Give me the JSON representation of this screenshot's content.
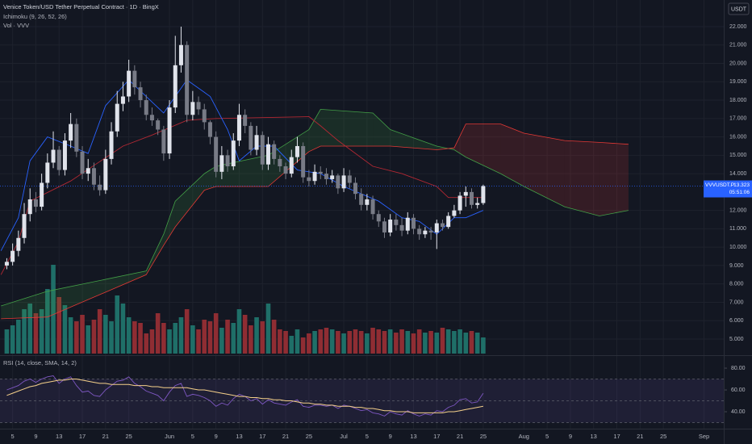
{
  "chart_data": {
    "type": "candlestick",
    "title": "Venice Token/USD Tether Perpetual Contract · 1D · BingX",
    "indicator_labels": [
      "Ichimoku (9, 26, 52, 26)",
      "Vol · VVV"
    ],
    "currency": "USDT",
    "up_color": "#e0e3eb",
    "down_color": "#787b86",
    "x": [
      4,
      5,
      6,
      7,
      8,
      9,
      10,
      11,
      12,
      13,
      14,
      15,
      16,
      17,
      18,
      19,
      20,
      21,
      22,
      23,
      24,
      25,
      26,
      27,
      28,
      29,
      30,
      31,
      32,
      33,
      34,
      35,
      36,
      37,
      38,
      39,
      40,
      41,
      42,
      43,
      44,
      45,
      46,
      47,
      48,
      49,
      50,
      51,
      52,
      53,
      54,
      55,
      56,
      57,
      58,
      59,
      60,
      61,
      62,
      63,
      64,
      65,
      66,
      67,
      68,
      69,
      70,
      71,
      72,
      73,
      74,
      75,
      76,
      77,
      78,
      79,
      80,
      81,
      82,
      83,
      84,
      85,
      86
    ],
    "open": [
      9.0,
      9.2,
      9.8,
      10.5,
      11.8,
      12.6,
      12.2,
      13.5,
      14.6,
      15.3,
      14.2,
      15.8,
      16.7,
      15.2,
      14.0,
      14.3,
      13.4,
      13.1,
      14.8,
      16.3,
      17.8,
      18.2,
      19.6,
      18.7,
      18.0,
      17.2,
      16.9,
      16.4,
      15.1,
      17.6,
      19.9,
      21.0,
      17.2,
      17.9,
      17.5,
      16.8,
      16.0,
      14.1,
      15.0,
      14.4,
      15.8,
      17.2,
      16.6,
      15.3,
      16.1,
      14.5,
      15.6,
      14.8,
      14.4,
      14.0,
      14.9,
      15.5,
      13.8,
      13.6,
      14.1,
      14.0,
      13.7,
      13.9,
      13.2,
      13.9,
      13.5,
      12.9,
      12.3,
      12.6,
      11.8,
      11.4,
      10.8,
      11.5,
      11.2,
      10.9,
      11.6,
      11.0,
      10.7,
      10.9,
      10.8,
      11.3,
      11.1,
      11.7,
      12.0,
      12.8,
      13.0,
      12.3,
      12.4
    ],
    "high": [
      9.4,
      10.2,
      10.9,
      12.4,
      13.2,
      13.0,
      14.0,
      15.1,
      16.3,
      15.5,
      16.2,
      17.3,
      17.0,
      15.5,
      14.8,
      14.6,
      13.9,
      15.3,
      16.8,
      18.5,
      19.0,
      20.2,
      19.9,
      19.0,
      18.3,
      17.6,
      17.0,
      16.6,
      18.0,
      21.5,
      22.0,
      21.2,
      18.5,
      18.2,
      17.8,
      16.9,
      16.3,
      15.5,
      15.3,
      16.2,
      17.8,
      17.5,
      16.8,
      16.6,
      16.3,
      16.0,
      15.8,
      15.0,
      14.6,
      15.3,
      16.0,
      15.7,
      14.2,
      14.5,
      14.4,
      14.3,
      14.2,
      14.0,
      14.3,
      14.2,
      13.8,
      13.2,
      12.9,
      12.8,
      12.0,
      11.6,
      11.8,
      11.8,
      11.6,
      11.9,
      11.8,
      11.2,
      11.1,
      11.1,
      11.5,
      11.5,
      11.9,
      12.3,
      13.0,
      13.3,
      13.2,
      12.7,
      13.4
    ],
    "low": [
      8.8,
      9.0,
      9.5,
      10.2,
      11.4,
      11.9,
      12.0,
      13.2,
      14.3,
      13.9,
      13.9,
      15.4,
      14.9,
      13.7,
      13.6,
      13.1,
      12.8,
      12.9,
      14.5,
      16.0,
      17.4,
      17.9,
      18.3,
      17.6,
      16.9,
      16.6,
      16.1,
      14.7,
      14.8,
      17.3,
      19.5,
      16.8,
      16.9,
      17.2,
      16.4,
      15.6,
      13.8,
      13.7,
      14.1,
      14.2,
      15.5,
      16.2,
      15.0,
      15.0,
      14.2,
      14.2,
      14.5,
      14.1,
      13.7,
      13.8,
      14.6,
      13.5,
      13.3,
      13.4,
      13.7,
      13.4,
      13.5,
      12.9,
      13.0,
      13.2,
      12.6,
      12.0,
      12.0,
      11.5,
      11.1,
      10.5,
      10.6,
      10.9,
      10.6,
      10.7,
      10.7,
      10.4,
      10.5,
      10.4,
      9.9,
      10.9,
      11.0,
      11.6,
      11.8,
      12.2,
      12.1,
      12.1,
      12.3
    ],
    "close": [
      9.2,
      9.8,
      10.5,
      11.8,
      12.6,
      12.2,
      13.5,
      14.6,
      15.3,
      14.2,
      15.8,
      16.7,
      15.2,
      14.0,
      14.3,
      13.4,
      13.1,
      14.8,
      16.3,
      17.8,
      18.2,
      19.6,
      18.7,
      18.0,
      17.2,
      16.9,
      16.4,
      15.1,
      17.6,
      19.9,
      21.0,
      17.2,
      17.9,
      17.5,
      16.8,
      16.0,
      14.1,
      15.0,
      14.4,
      15.8,
      17.2,
      16.6,
      15.3,
      16.1,
      14.5,
      15.6,
      14.8,
      14.4,
      14.0,
      14.9,
      15.5,
      13.8,
      13.6,
      14.1,
      14.0,
      13.7,
      13.9,
      13.2,
      13.9,
      13.5,
      12.9,
      12.3,
      12.6,
      11.8,
      11.4,
      10.8,
      11.5,
      11.2,
      10.9,
      11.6,
      11.0,
      10.7,
      10.9,
      10.8,
      11.3,
      11.1,
      11.7,
      12.0,
      12.8,
      13.0,
      12.3,
      12.4,
      13.323
    ],
    "volume": {
      "up_color": "#1f6f68",
      "down_color": "#8f2d33",
      "ylim": [
        0,
        110
      ],
      "values": [
        30,
        35,
        42,
        55,
        62,
        50,
        55,
        80,
        110,
        70,
        60,
        45,
        40,
        48,
        35,
        42,
        55,
        48,
        40,
        72,
        62,
        45,
        40,
        38,
        25,
        30,
        50,
        38,
        30,
        38,
        45,
        55,
        35,
        30,
        42,
        40,
        50,
        32,
        42,
        38,
        55,
        48,
        35,
        45,
        40,
        62,
        42,
        30,
        28,
        22,
        30,
        20,
        25,
        28,
        30,
        32,
        30,
        28,
        25,
        28,
        30,
        28,
        25,
        32,
        30,
        28,
        30,
        26,
        30,
        28,
        25,
        30,
        26,
        28,
        26,
        32,
        30,
        28,
        30,
        26,
        28,
        26,
        20
      ]
    },
    "ichimoku": {
      "conversion": {
        "color": "#2962ff",
        "x": [
          3,
          6,
          8,
          11,
          15,
          18,
          21,
          25,
          31,
          33,
          35,
          39,
          42,
          44,
          47,
          50,
          54,
          58,
          62,
          65,
          68,
          72,
          75,
          78,
          81,
          83,
          86
        ],
        "values": [
          9.8,
          11.6,
          14.7,
          16.0,
          15.5,
          15.1,
          17.7,
          19.1,
          17.3,
          18.2,
          19.1,
          18.2,
          16.4,
          14.7,
          15.5,
          15.5,
          14.2,
          14.0,
          13.3,
          12.9,
          12.5,
          11.6,
          11.4,
          10.7,
          11.6,
          11.6,
          12.0
        ]
      },
      "base": {
        "color": "#b22833",
        "x": [
          3,
          6,
          8,
          15,
          24,
          29,
          35,
          40,
          56,
          58,
          61,
          67,
          72,
          78,
          80,
          86
        ],
        "values": [
          8.5,
          10.3,
          12.5,
          13.6,
          15.5,
          16.1,
          16.9,
          17.0,
          17.1,
          16.6,
          15.8,
          14.4,
          14.0,
          13.3,
          12.7,
          12.7
        ]
      },
      "cloud_x": [
        3,
        11,
        28,
        31,
        33,
        38,
        40,
        49,
        56,
        58,
        67,
        70,
        78,
        81,
        83,
        89,
        93,
        100,
        106,
        111
      ],
      "span_a": {
        "color": "#43a047",
        "values": [
          6.8,
          7.6,
          8.7,
          10.7,
          12.5,
          14.0,
          14.4,
          15.0,
          16.4,
          17.5,
          17.3,
          16.4,
          15.5,
          15.3,
          14.9,
          14.0,
          13.3,
          12.2,
          11.7,
          12.0
        ]
      },
      "span_b": {
        "color": "#e53935",
        "values": [
          6.1,
          6.2,
          8.5,
          10.1,
          11.1,
          13.1,
          13.3,
          13.3,
          15.2,
          15.5,
          15.5,
          15.5,
          15.3,
          15.4,
          16.7,
          16.7,
          16.2,
          15.8,
          15.7,
          15.6
        ]
      }
    },
    "ylim": [
      4.12,
      23.45
    ],
    "yticks": [
      {
        "value": 5,
        "label": "5.000"
      },
      {
        "value": 6,
        "label": "6.000"
      },
      {
        "value": 7,
        "label": "7.000"
      },
      {
        "value": 8,
        "label": "8.000"
      },
      {
        "value": 9,
        "label": "9.000"
      },
      {
        "value": 10,
        "label": "10.000"
      },
      {
        "value": 11,
        "label": "11.000"
      },
      {
        "value": 12,
        "label": "12.000"
      },
      {
        "value": 14,
        "label": "14.000"
      },
      {
        "value": 15,
        "label": "15.000"
      },
      {
        "value": 16,
        "label": "16.000"
      },
      {
        "value": 17,
        "label": "17.000"
      },
      {
        "value": 18,
        "label": "18.000"
      },
      {
        "value": 19,
        "label": "19.000"
      },
      {
        "value": 20,
        "label": "20.000"
      },
      {
        "value": 21,
        "label": "21.000"
      },
      {
        "value": 22,
        "label": "22.000"
      }
    ],
    "xlim": [
      2.83,
      127.4
    ],
    "xticks": [
      5,
      9,
      13,
      17,
      21,
      25,
      {
        "value": 32,
        "label": "Jun"
      },
      {
        "value": 36,
        "label": "5"
      },
      {
        "value": 40,
        "label": "9"
      },
      {
        "value": 44,
        "label": "13"
      },
      {
        "value": 48,
        "label": "17"
      },
      {
        "value": 52,
        "label": "21"
      },
      {
        "value": 56,
        "label": "25"
      },
      {
        "value": 62,
        "label": "Jul"
      },
      {
        "value": 66,
        "label": "5"
      },
      {
        "value": 70,
        "label": "9"
      },
      {
        "value": 74,
        "label": "13"
      },
      {
        "value": 78,
        "label": "17"
      },
      {
        "value": 82,
        "label": "21"
      },
      {
        "value": 86,
        "label": "25"
      },
      {
        "value": 93,
        "label": "Aug"
      },
      {
        "value": 97,
        "label": "5"
      },
      {
        "value": 101,
        "label": "9"
      },
      {
        "value": 105,
        "label": "13"
      },
      {
        "value": 109,
        "label": "17"
      },
      {
        "value": 113,
        "label": "21"
      },
      {
        "value": 117,
        "label": "25"
      },
      {
        "value": 124,
        "label": "Sep"
      }
    ],
    "last_price": {
      "symbol": "VVVUSDT.P",
      "value": 13.323,
      "countdown": "05:51:06",
      "color": "#2962ff"
    },
    "rsi": {
      "label": "RSI (14, close, SMA, 14, 2)",
      "color": "#7e57c2",
      "ma_color": "#f5d08a",
      "ylim": [
        25.2,
        90.4
      ],
      "yticks": [
        {
          "value": 80,
          "label": "80.00"
        },
        {
          "value": 60,
          "label": "60.00"
        },
        {
          "value": 40,
          "label": "40.00"
        }
      ],
      "levels": [
        70,
        50,
        30
      ],
      "values": [
        60,
        62,
        64,
        68,
        70,
        67,
        70,
        72,
        73,
        66,
        70,
        72,
        64,
        58,
        59,
        55,
        54,
        60,
        64,
        68,
        69,
        72,
        66,
        63,
        59,
        57,
        55,
        50,
        58,
        64,
        66,
        54,
        56,
        55,
        53,
        50,
        45,
        48,
        46,
        52,
        56,
        54,
        50,
        52,
        47,
        51,
        48,
        47,
        46,
        49,
        51,
        45,
        44,
        46,
        46,
        45,
        46,
        43,
        46,
        45,
        43,
        41,
        42,
        39,
        38,
        36,
        40,
        38,
        37,
        41,
        38,
        36,
        38,
        37,
        41,
        40,
        44,
        46,
        51,
        52,
        48,
        49,
        57
      ],
      "ma": [
        55,
        57,
        59,
        61,
        63,
        64,
        66,
        67,
        68,
        69,
        69,
        70,
        70,
        69,
        68,
        67,
        66,
        66,
        65,
        65,
        65,
        65,
        64,
        64,
        64,
        63,
        63,
        62,
        62,
        62,
        62,
        62,
        61,
        60,
        60,
        59,
        58,
        57,
        56,
        55,
        54,
        54,
        53,
        53,
        52,
        52,
        51,
        51,
        50,
        50,
        49,
        48,
        48,
        47,
        47,
        46,
        46,
        45,
        45,
        45,
        44,
        44,
        43,
        43,
        42,
        41,
        41,
        40,
        40,
        40,
        39,
        39,
        39,
        39,
        39,
        39,
        40,
        40,
        41,
        42,
        43,
        44,
        45
      ]
    }
  }
}
